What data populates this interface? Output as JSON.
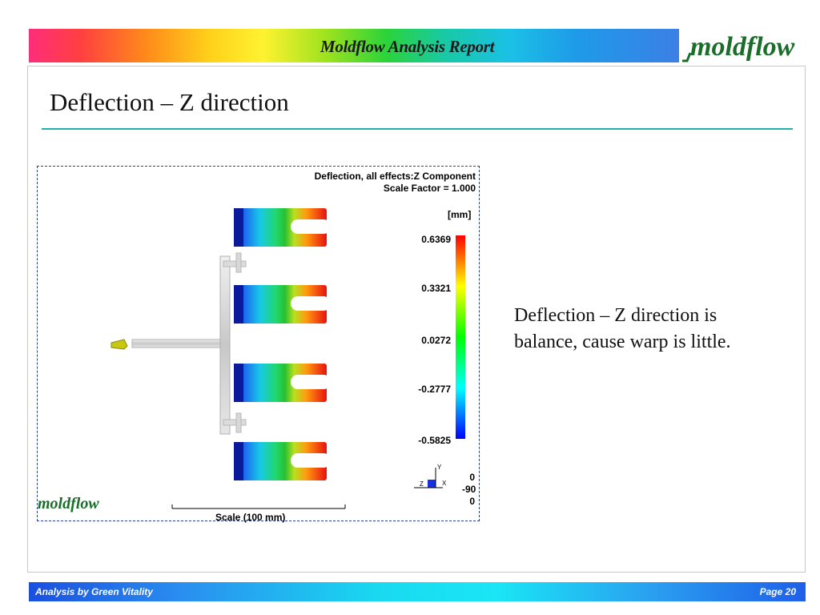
{
  "header": {
    "title": "Moldflow Analysis Report",
    "logo_text": "moldflow",
    "logo_color": "#1a6e2a"
  },
  "slide": {
    "title": "Deflection – Z direction",
    "rule_color": "#20b2aa"
  },
  "plot": {
    "title_line1": "Deflection, all effects:Z Component",
    "title_line2": "Scale Factor = 1.000",
    "unit": "[mm]",
    "legend_ticks": [
      "0.6369",
      "0.3321",
      "0.0272",
      "-0.2777",
      "-0.5825"
    ],
    "legend_colors": [
      "#ff0000",
      "#ffff00",
      "#00ff00",
      "#00ffff",
      "#0000ff"
    ],
    "orientation_axes": {
      "y": "Y",
      "z": "Z",
      "x": "X"
    },
    "orientation_values": [
      "0",
      "-90",
      "0"
    ],
    "scale_label": "Scale (100 mm)",
    "logo_text": "moldflow"
  },
  "description": "Deflection – Z direction is balance, cause warp is little.",
  "footer": {
    "left": "Analysis by Green Vitality",
    "right": "Page  20"
  }
}
